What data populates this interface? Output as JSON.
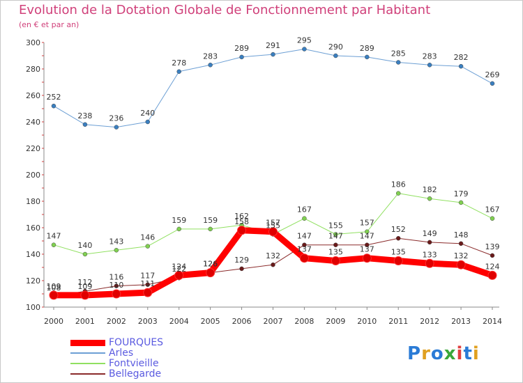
{
  "header": {
    "title": "Evolution de la Dotation Globale de Fonctionnement par Habitant",
    "subtitle": "(en € et par an)"
  },
  "logo": {
    "text": "Proxiti",
    "colors": [
      "#2a7bd6",
      "#e0a020",
      "#2a7bd6",
      "#3aa83a",
      "#e04040",
      "#2a7bd6",
      "#e0a020"
    ]
  },
  "chart_data": {
    "type": "line",
    "title": "Evolution de la Dotation Globale de Fonctionnement par Habitant",
    "subtitle": "(en € et par an)",
    "x": [
      "2000",
      "2001",
      "2002",
      "2003",
      "2004",
      "2005",
      "2006",
      "2007",
      "2008",
      "2009",
      "2010",
      "2011",
      "2012",
      "2013",
      "2014"
    ],
    "ylim": [
      100,
      300
    ],
    "yticks": [
      100,
      120,
      140,
      160,
      180,
      200,
      220,
      240,
      260,
      280,
      300
    ],
    "grid": false,
    "legend_position": "bottom-left",
    "series": [
      {
        "name": "FOURQUES",
        "color": "#ff0000",
        "marker": "#e00000",
        "width": 9,
        "values": [
          109,
          109,
          110,
          111,
          124,
          126,
          158,
          157,
          137,
          135,
          137,
          135,
          133,
          132,
          124
        ],
        "labels": [
          "109",
          "109",
          "110",
          "111",
          "124",
          "126",
          "158",
          "157",
          "137",
          "135",
          "137",
          "135",
          "133",
          "132",
          "124"
        ]
      },
      {
        "name": "Arles",
        "color": "#6c9fd4",
        "marker": "#3a7fc0",
        "width": 1,
        "values": [
          252,
          238,
          236,
          240,
          278,
          283,
          289,
          291,
          295,
          290,
          289,
          285,
          283,
          282,
          269
        ],
        "labels": [
          "252",
          "238",
          "236",
          "240",
          "278",
          "283",
          "289",
          "291",
          "295",
          "290",
          "289",
          "285",
          "283",
          "282",
          "269"
        ]
      },
      {
        "name": "Fontvieille",
        "color": "#90e060",
        "marker": "#80d050",
        "width": 1,
        "values": [
          147,
          140,
          143,
          146,
          159,
          159,
          162,
          155,
          167,
          155,
          157,
          186,
          182,
          179,
          167
        ],
        "labels": [
          "147",
          "140",
          "143",
          "146",
          "159",
          "159",
          "162",
          "155",
          "167",
          "155",
          "157",
          "186",
          "182",
          "179",
          "167"
        ]
      },
      {
        "name": "Bellegarde",
        "color": "#8a2a2a",
        "marker": "#6a1a1a",
        "width": 1,
        "values": [
          108,
          112,
          116,
          117,
          122,
          126,
          129,
          132,
          147,
          147,
          147,
          152,
          149,
          148,
          139
        ],
        "labels": [
          "108",
          "112",
          "116",
          "117",
          "122",
          "126",
          "129",
          "132",
          "147",
          "147",
          "147",
          "152",
          "149",
          "148",
          "139"
        ]
      }
    ]
  }
}
